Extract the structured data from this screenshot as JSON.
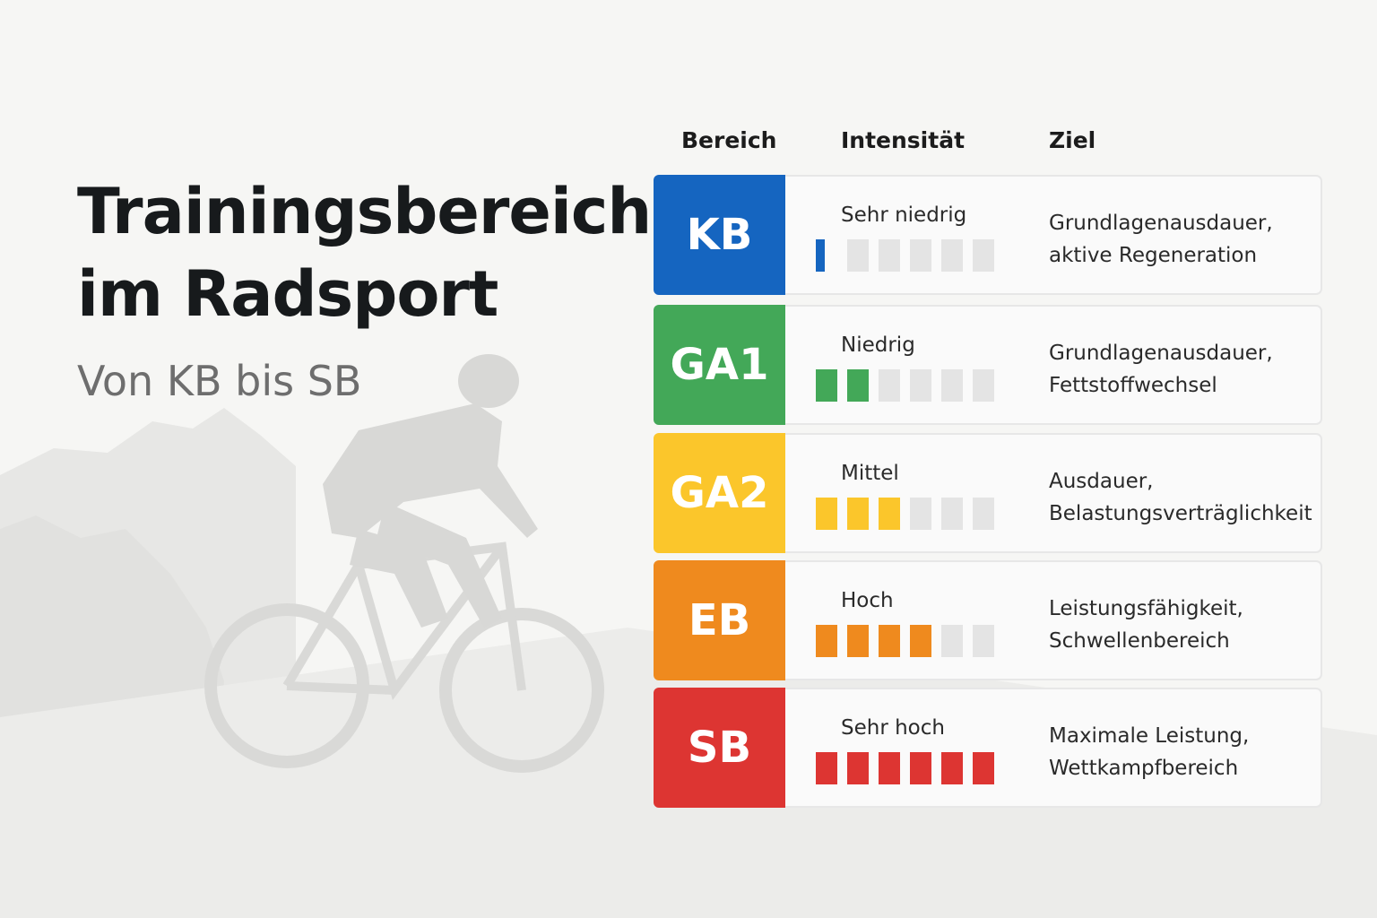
{
  "title_line1": "Trainingsbereiche",
  "title_line2": "im Radsport",
  "subtitle": "Von KB bis SB",
  "headers": {
    "bereich": "Bereich",
    "intensitaet": "Intensität",
    "ziel": "Ziel"
  },
  "zones": [
    {
      "code": "KB",
      "color": "#1565c0",
      "intensity": "Sehr niedrig",
      "level": 1,
      "of": 6,
      "goal_line1": "Grundlagenausdauer,",
      "goal_line2": "aktive Regeneration"
    },
    {
      "code": "GA1",
      "color": "#43a858",
      "intensity": "Niedrig",
      "level": 2,
      "of": 6,
      "goal_line1": "Grundlagenausdauer,",
      "goal_line2": "Fettstoffwechsel"
    },
    {
      "code": "GA2",
      "color": "#fbc62b",
      "intensity": "Mittel",
      "level": 3,
      "of": 6,
      "goal_line1": "Ausdauer,",
      "goal_line2": "Belastungsverträglichkeit"
    },
    {
      "code": "EB",
      "color": "#ef8a1e",
      "intensity": "Hoch",
      "level": 4,
      "of": 6,
      "goal_line1": "Leistungsfähigkeit,",
      "goal_line2": "Schwellenbereich"
    },
    {
      "code": "SB",
      "color": "#dd3532",
      "intensity": "Sehr hoch",
      "level": 6,
      "of": 6,
      "goal_line1": "Maximale Leistung,",
      "goal_line2": "Wettkampfbereich"
    }
  ]
}
